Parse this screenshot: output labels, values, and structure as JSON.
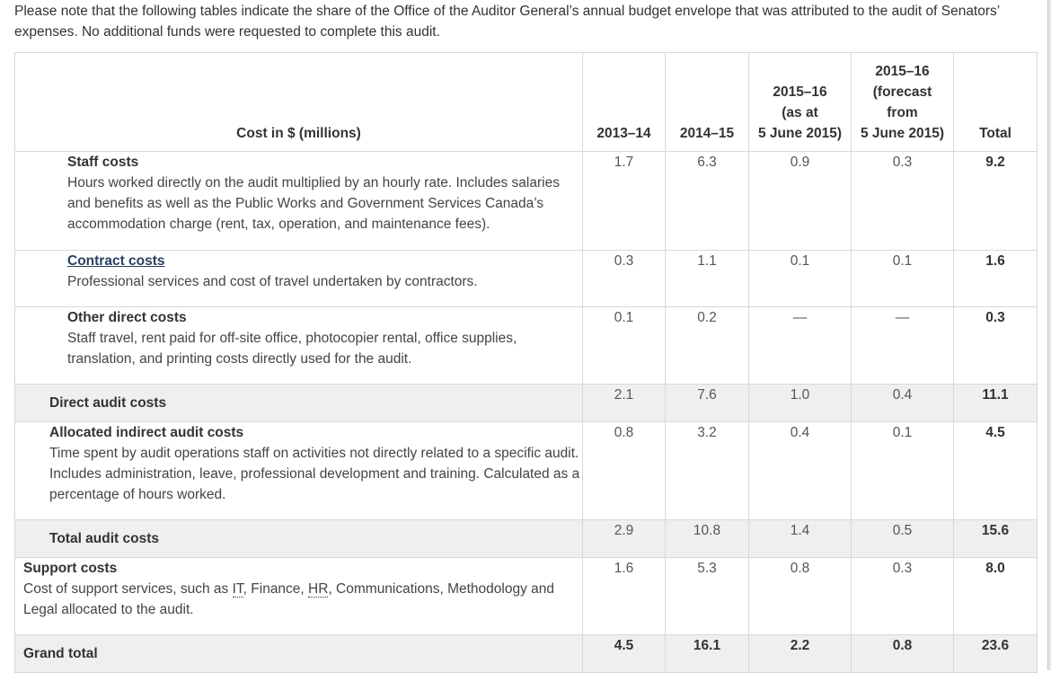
{
  "intro": "Please note that the following tables indicate the share of the Office of the Auditor General’s annual budget envelope that was attributed to the audit of Senators’ expenses. No additional funds were requested to complete this audit.",
  "table": {
    "headers": {
      "desc": "Cost in $ (millions)",
      "c1": "2013–14",
      "c2": "2014–15",
      "c3": [
        "2015–16",
        "(as at",
        "5 June 2015)"
      ],
      "c4": [
        "2015–16",
        "(forecast",
        "from",
        "5 June 2015)"
      ],
      "total": "Total"
    },
    "rows": {
      "staff": {
        "title": "Staff costs",
        "desc": "Hours worked directly on the audit multiplied by an hourly rate. Includes salaries and benefits as well as the Public Works and Government Services Canada’s accommodation charge (rent, tax, operation, and maintenance fees).",
        "v": [
          "1.7",
          "6.3",
          "0.9",
          "0.3"
        ],
        "total": "9.2"
      },
      "contract": {
        "title": "Contract costs",
        "desc": "Professional services and cost of travel undertaken by contractors.",
        "v": [
          "0.3",
          "1.1",
          "0.1",
          "0.1"
        ],
        "total": "1.6"
      },
      "other": {
        "title": "Other direct costs",
        "desc": "Staff travel, rent paid for off-site office, photocopier rental, office supplies, translation, and printing costs directly used for the audit.",
        "v": [
          "0.1",
          "0.2",
          "—",
          "—"
        ],
        "total": "0.3"
      },
      "direct": {
        "title": "Direct audit costs",
        "v": [
          "2.1",
          "7.6",
          "1.0",
          "0.4"
        ],
        "total": "11.1"
      },
      "indirect": {
        "title": "Allocated indirect audit costs",
        "desc": "Time spent by audit operations staff on activities not directly related to a specific audit. Includes administration, leave, professional development and training. Calculated as a percentage of hours worked.",
        "v": [
          "0.8",
          "3.2",
          "0.4",
          "0.1"
        ],
        "total": "4.5"
      },
      "totalaudit": {
        "title": "Total audit costs",
        "v": [
          "2.9",
          "10.8",
          "1.4",
          "0.5"
        ],
        "total": "15.6"
      },
      "support": {
        "title": "Support costs",
        "desc_a": "Cost of support services, such as ",
        "abbr_it": "IT",
        "desc_b": ", Finance, ",
        "abbr_hr": "HR",
        "desc_c": ", Communications, Methodology and Legal allocated to the audit.",
        "v": [
          "1.6",
          "5.3",
          "0.8",
          "0.3"
        ],
        "total": "8.0"
      },
      "grand": {
        "title": "Grand total",
        "v": [
          "4.5",
          "16.1",
          "2.2",
          "0.8"
        ],
        "total": "23.6"
      }
    }
  }
}
